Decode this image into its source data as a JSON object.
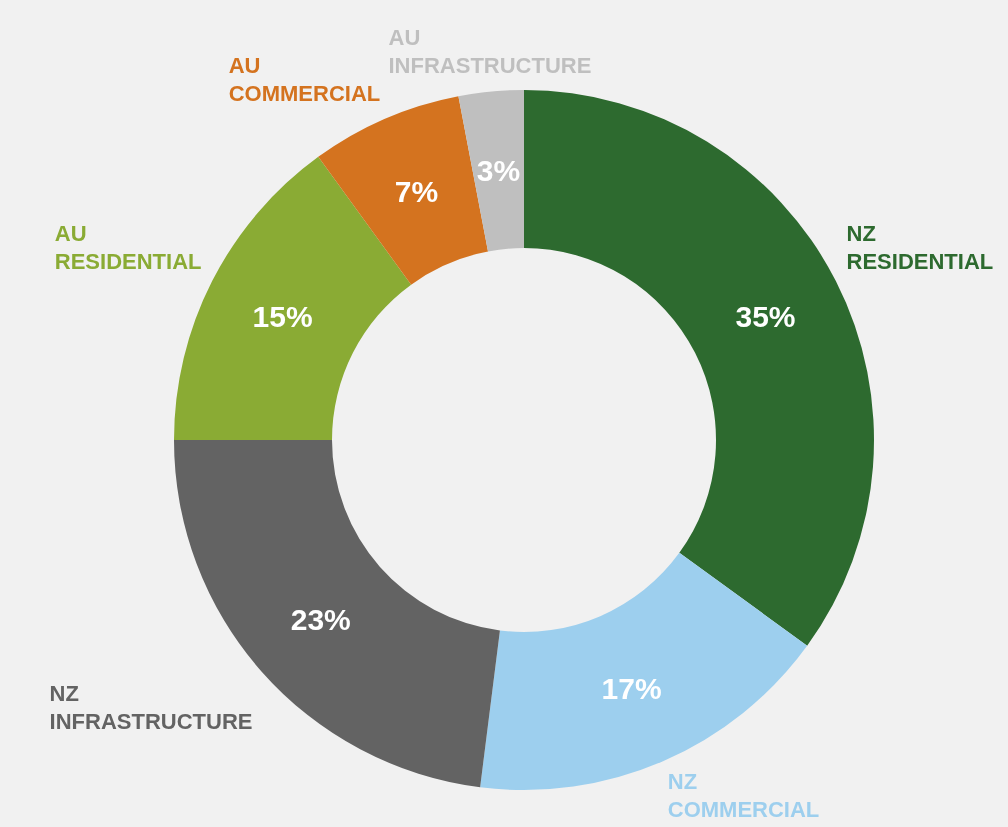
{
  "chart_data": {
    "type": "donut",
    "categories": [
      "NZ RESIDENTIAL",
      "NZ COMMERCIAL",
      "NZ INFRASTRUCTURE",
      "AU RESIDENTIAL",
      "AU COMMERCIAL",
      "AU INFRASTRUCTURE"
    ],
    "values": [
      35,
      17,
      23,
      15,
      7,
      3
    ],
    "value_labels": [
      "35%",
      "17%",
      "23%",
      "15%",
      "7%",
      "3%"
    ],
    "colors": [
      "#2d6a2f",
      "#9dcfee",
      "#636363",
      "#8aab34",
      "#d4731f",
      "#bfbfbf"
    ],
    "legend": false
  }
}
